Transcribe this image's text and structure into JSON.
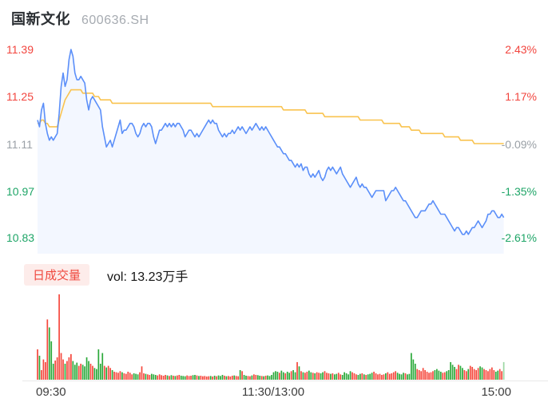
{
  "header": {
    "title": "国新文化",
    "code": "600636.SH"
  },
  "price_axis_left": [
    {
      "label": "11.39",
      "color": "#f2453e"
    },
    {
      "label": "11.25",
      "color": "#f2453e"
    },
    {
      "label": "11.11",
      "color": "#9aa0a6"
    },
    {
      "label": "10.97",
      "color": "#1ea567"
    },
    {
      "label": "10.83",
      "color": "#1ea567"
    }
  ],
  "pct_axis_right": [
    {
      "label": "2.43%",
      "color": "#f2453e"
    },
    {
      "label": "1.17%",
      "color": "#f2453e"
    },
    {
      "label": "-0.09%",
      "color": "#9aa0a6"
    },
    {
      "label": "-1.35%",
      "color": "#1ea567"
    },
    {
      "label": "-2.61%",
      "color": "#1ea567"
    }
  ],
  "volume_header": {
    "badge": "日成交量",
    "vol_label": "vol: 13.23万手"
  },
  "time_axis": {
    "open": "09:30",
    "mid": "11:30/13:00",
    "close": "15:00"
  },
  "chart_data": {
    "type": "line",
    "title": "国新文化 600636.SH 分时走势",
    "prev_close": 11.12,
    "ylim": [
      10.83,
      11.39
    ],
    "y_ticks_price": [
      11.39,
      11.25,
      11.11,
      10.97,
      10.83
    ],
    "y_ticks_pct": [
      "2.43%",
      "1.17%",
      "-0.09%",
      "-1.35%",
      "-2.61%"
    ],
    "x_ticks": [
      "09:30",
      "11:30/13:00",
      "15:00"
    ],
    "x_total_minutes": 240,
    "legend_position": "none",
    "grid": false,
    "series": [
      {
        "name": "price",
        "color": "#5b8ff9",
        "fill": "rgba(91,143,249,0.07)",
        "values": [
          11.18,
          11.16,
          11.21,
          11.23,
          11.17,
          11.14,
          11.12,
          11.13,
          11.12,
          11.13,
          11.14,
          11.2,
          11.28,
          11.32,
          11.28,
          11.3,
          11.36,
          11.39,
          11.37,
          11.32,
          11.3,
          11.3,
          11.31,
          11.3,
          11.29,
          11.24,
          11.21,
          11.24,
          11.25,
          11.24,
          11.23,
          11.22,
          11.21,
          11.16,
          11.13,
          11.1,
          11.11,
          11.12,
          11.1,
          11.12,
          11.14,
          11.16,
          11.18,
          11.14,
          11.15,
          11.15,
          11.16,
          11.17,
          11.17,
          11.16,
          11.14,
          11.13,
          11.14,
          11.16,
          11.17,
          11.16,
          11.17,
          11.17,
          11.16,
          11.13,
          11.11,
          11.13,
          11.15,
          11.15,
          11.16,
          11.17,
          11.16,
          11.17,
          11.16,
          11.17,
          11.16,
          11.17,
          11.17,
          11.16,
          11.15,
          11.13,
          11.14,
          11.15,
          11.15,
          11.14,
          11.13,
          11.14,
          11.13,
          11.14,
          11.15,
          11.16,
          11.17,
          11.18,
          11.17,
          11.18,
          11.17,
          11.17,
          11.15,
          11.14,
          11.13,
          11.14,
          11.13,
          11.14,
          11.14,
          11.15,
          11.14,
          11.15,
          11.16,
          11.15,
          11.16,
          11.15,
          11.14,
          11.15,
          11.16,
          11.15,
          11.16,
          11.17,
          11.16,
          11.15,
          11.16,
          11.15,
          11.16,
          11.15,
          11.14,
          11.13,
          11.12,
          11.11,
          11.1,
          11.1,
          11.09,
          11.08,
          11.08,
          11.07,
          11.06,
          11.06,
          11.05,
          11.04,
          11.05,
          11.04,
          11.05,
          11.03,
          11.04,
          11.04,
          11.02,
          11.01,
          11.02,
          11.01,
          11.02,
          11.03,
          11.01,
          11.0,
          11.01,
          11.03,
          11.04,
          11.03,
          11.04,
          11.03,
          11.02,
          11.03,
          11.04,
          11.02,
          11.01,
          11.0,
          10.99,
          10.98,
          10.99,
          11.0,
          11.01,
          10.99,
          10.98,
          10.99,
          10.98,
          10.98,
          10.97,
          10.96,
          10.95,
          10.96,
          10.97,
          10.97,
          10.97,
          10.97,
          10.97,
          10.94,
          10.95,
          10.96,
          10.97,
          10.97,
          10.98,
          10.97,
          10.96,
          10.95,
          10.94,
          10.94,
          10.93,
          10.92,
          10.91,
          10.9,
          10.89,
          10.89,
          10.9,
          10.91,
          10.91,
          10.91,
          10.92,
          10.93,
          10.93,
          10.94,
          10.93,
          10.92,
          10.91,
          10.9,
          10.9,
          10.9,
          10.89,
          10.88,
          10.87,
          10.86,
          10.85,
          10.86,
          10.86,
          10.85,
          10.84,
          10.84,
          10.85,
          10.84,
          10.85,
          10.86,
          10.86,
          10.87,
          10.88,
          10.87,
          10.86,
          10.87,
          10.88,
          10.9,
          10.9,
          10.91,
          10.91,
          10.9,
          10.89,
          10.89,
          10.9,
          10.89
        ]
      },
      {
        "name": "avg",
        "color": "#f9c34f",
        "values": [
          11.17,
          11.17,
          11.18,
          11.18,
          11.17,
          11.17,
          11.16,
          11.16,
          11.16,
          11.16,
          11.16,
          11.18,
          11.2,
          11.22,
          11.24,
          11.25,
          11.26,
          11.27,
          11.27,
          11.27,
          11.27,
          11.27,
          11.27,
          11.26,
          11.26,
          11.26,
          11.26,
          11.26,
          11.26,
          11.25,
          11.25,
          11.25,
          11.24,
          11.24,
          11.24,
          11.24,
          11.24,
          11.24,
          11.23,
          11.23,
          11.23,
          11.23,
          11.23,
          11.23,
          11.23,
          11.23,
          11.23,
          11.23,
          11.23,
          11.23,
          11.23,
          11.23,
          11.23,
          11.23,
          11.23,
          11.23,
          11.23,
          11.23,
          11.23,
          11.23,
          11.23,
          11.23,
          11.23,
          11.23,
          11.23,
          11.23,
          11.23,
          11.23,
          11.23,
          11.23,
          11.23,
          11.23,
          11.23,
          11.23,
          11.23,
          11.23,
          11.23,
          11.23,
          11.23,
          11.23,
          11.23,
          11.23,
          11.23,
          11.23,
          11.23,
          11.23,
          11.23,
          11.23,
          11.23,
          11.22,
          11.22,
          11.22,
          11.22,
          11.22,
          11.22,
          11.22,
          11.22,
          11.22,
          11.22,
          11.22,
          11.22,
          11.22,
          11.22,
          11.22,
          11.22,
          11.22,
          11.22,
          11.22,
          11.22,
          11.22,
          11.22,
          11.22,
          11.22,
          11.22,
          11.22,
          11.22,
          11.22,
          11.22,
          11.22,
          11.22,
          11.22,
          11.22,
          11.22,
          11.22,
          11.22,
          11.21,
          11.21,
          11.21,
          11.21,
          11.21,
          11.21,
          11.21,
          11.21,
          11.21,
          11.21,
          11.21,
          11.21,
          11.2,
          11.2,
          11.2,
          11.2,
          11.2,
          11.2,
          11.2,
          11.2,
          11.2,
          11.19,
          11.19,
          11.19,
          11.19,
          11.19,
          11.19,
          11.19,
          11.19,
          11.19,
          11.19,
          11.19,
          11.19,
          11.19,
          11.19,
          11.19,
          11.19,
          11.19,
          11.19,
          11.18,
          11.18,
          11.18,
          11.18,
          11.18,
          11.18,
          11.18,
          11.18,
          11.18,
          11.18,
          11.18,
          11.18,
          11.17,
          11.17,
          11.17,
          11.17,
          11.17,
          11.17,
          11.17,
          11.17,
          11.17,
          11.16,
          11.16,
          11.16,
          11.16,
          11.16,
          11.15,
          11.15,
          11.15,
          11.15,
          11.15,
          11.14,
          11.14,
          11.14,
          11.14,
          11.14,
          11.14,
          11.14,
          11.14,
          11.14,
          11.14,
          11.14,
          11.14,
          11.13,
          11.13,
          11.13,
          11.13,
          11.13,
          11.13,
          11.13,
          11.13,
          11.12,
          11.12,
          11.12,
          11.12,
          11.12,
          11.12,
          11.12,
          11.11,
          11.11,
          11.11,
          11.11,
          11.11,
          11.11,
          11.11,
          11.11,
          11.11,
          11.11,
          11.11,
          11.11,
          11.11,
          11.11,
          11.11,
          11.11
        ]
      }
    ],
    "volume": {
      "name": "日成交量",
      "total_label": "13.23万手",
      "up_color": "#f5483d",
      "down_color": "#2ba93a",
      "last_bar_color": "#9bd6a2",
      "values": [
        570,
        450,
        180,
        380,
        330,
        1130,
        980,
        720,
        300,
        360,
        420,
        1600,
        500,
        380,
        300,
        350,
        420,
        480,
        350,
        280,
        320,
        260,
        300,
        280,
        250,
        420,
        350,
        300,
        260,
        220,
        200,
        570,
        300,
        500,
        260,
        230,
        260,
        220,
        180,
        150,
        140,
        130,
        160,
        140,
        120,
        110,
        150,
        130,
        100,
        120,
        110,
        100,
        140,
        250,
        120,
        110,
        100,
        90,
        110,
        100,
        90,
        80,
        100,
        85,
        75,
        90,
        80,
        70,
        85,
        75,
        70,
        80,
        90,
        75,
        70,
        65,
        80,
        70,
        75,
        85,
        90,
        80,
        70,
        75,
        65,
        70,
        60,
        65,
        70,
        60,
        75,
        65,
        80,
        70,
        90,
        75,
        65,
        70,
        60,
        75,
        80,
        70,
        65,
        180,
        160,
        90,
        75,
        70,
        65,
        80,
        100,
        90,
        85,
        75,
        70,
        65,
        75,
        80,
        70,
        90,
        140,
        160,
        150,
        130,
        170,
        140,
        120,
        150,
        130,
        160,
        180,
        140,
        330,
        250,
        160,
        140,
        130,
        150,
        170,
        140,
        130,
        120,
        140,
        130,
        120,
        140,
        160,
        130,
        120,
        110,
        120,
        100,
        110,
        130,
        100,
        90,
        140,
        120,
        100,
        160,
        140,
        120,
        100,
        90,
        110,
        120,
        100,
        90,
        100,
        110,
        130,
        150,
        120,
        100,
        110,
        90,
        100,
        120,
        140,
        110,
        120,
        140,
        160,
        130,
        110,
        100,
        130,
        120,
        100,
        110,
        500,
        380,
        300,
        200,
        180,
        160,
        220,
        180,
        150,
        130,
        140,
        160,
        180,
        200,
        170,
        150,
        130,
        140,
        160,
        180,
        330,
        280,
        240,
        200,
        280,
        260,
        220,
        180,
        160,
        200,
        260,
        240,
        200,
        180,
        220,
        250,
        230,
        200,
        180,
        160,
        200,
        230,
        180,
        150,
        170,
        200,
        160,
        330
      ],
      "color_overrides": {
        "4": "r",
        "5": "r",
        "7": "g",
        "11": "r",
        "31": "g",
        "34": "r",
        "112": "g",
        "133": "g",
        "190": "g",
        "210": "g",
        "237": "l"
      }
    }
  }
}
